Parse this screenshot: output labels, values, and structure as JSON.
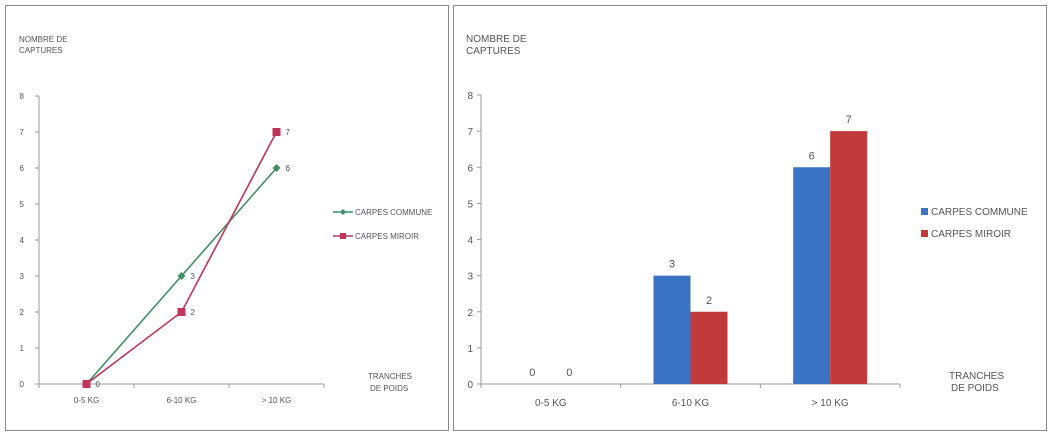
{
  "chart_data": [
    {
      "type": "line",
      "ylabel_lines": [
        "NOMBRE DE",
        "CAPTURES"
      ],
      "xlabel_lines": [
        "TRANCHES",
        "DE POIDS"
      ],
      "categories": [
        "0-5 KG",
        "6-10 KG",
        "> 10 KG"
      ],
      "ylim": [
        0,
        8
      ],
      "yticks": [
        0,
        1,
        2,
        3,
        4,
        5,
        6,
        7,
        8
      ],
      "legend_position": "right",
      "series": [
        {
          "name": "CARPES COMMUNE",
          "values": [
            0,
            3,
            6
          ],
          "color": "#3f8f63",
          "marker": "diamond"
        },
        {
          "name": "CARPES MIROIR",
          "values": [
            0,
            2,
            7
          ],
          "color": "#c0355a",
          "marker": "square"
        }
      ],
      "data_labels": [
        {
          "category": "0-5 KG",
          "value": 0,
          "text": "0"
        },
        {
          "category": "6-10 KG",
          "value": 3,
          "text": "3"
        },
        {
          "category": "6-10 KG",
          "value": 2,
          "text": "2"
        },
        {
          "category": "> 10 KG",
          "value": 7,
          "text": "7"
        },
        {
          "category": "> 10 KG",
          "value": 6,
          "text": "6"
        }
      ]
    },
    {
      "type": "bar",
      "ylabel_lines": [
        "NOMBRE DE",
        "CAPTURES"
      ],
      "xlabel_lines": [
        "TRANCHES",
        "DE POIDS"
      ],
      "categories": [
        "0-5 KG",
        "6-10 KG",
        "> 10 KG"
      ],
      "ylim": [
        0,
        8
      ],
      "yticks": [
        0,
        1,
        2,
        3,
        4,
        5,
        6,
        7,
        8
      ],
      "legend_position": "right",
      "series": [
        {
          "name": "CARPES COMMUNE",
          "values": [
            0,
            3,
            6
          ],
          "color": "#3b73c4"
        },
        {
          "name": "CARPES MIROIR",
          "values": [
            0,
            2,
            7
          ],
          "color": "#c23b3a"
        }
      ]
    }
  ]
}
